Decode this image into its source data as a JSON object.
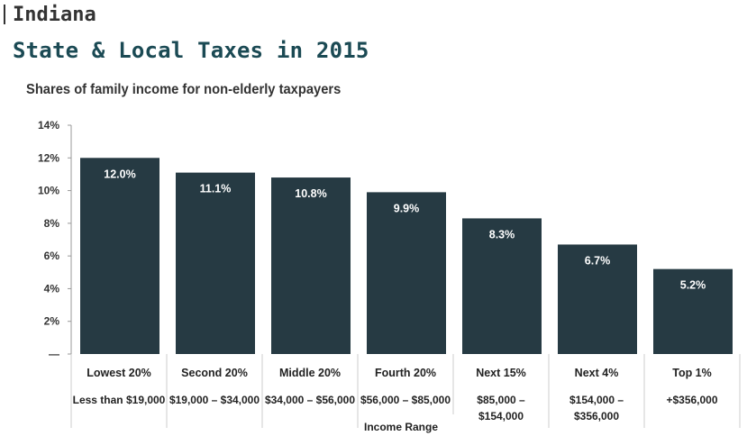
{
  "header": {
    "state": "Indiana",
    "title": "State & Local Taxes in 2015",
    "subtitle": "Shares of family income for non-elderly taxpayers"
  },
  "colors": {
    "bar": "#263a43",
    "title": "#1b4a54",
    "axis": "#999999"
  },
  "chart_data": {
    "type": "bar",
    "title": "State & Local Taxes in 2015",
    "subtitle": "Shares of family income for non-elderly taxpayers",
    "xlabel": "Income Range",
    "ylabel": "",
    "ylim": [
      0,
      14
    ],
    "yticks": [
      "—",
      "2%",
      "4%",
      "6%",
      "8%",
      "10%",
      "12%",
      "14%"
    ],
    "ytick_values": [
      0,
      2,
      4,
      6,
      8,
      10,
      12,
      14
    ],
    "grid": false,
    "categories": [
      "Lowest 20%",
      "Second 20%",
      "Middle 20%",
      "Fourth 20%",
      "Next 15%",
      "Next 4%",
      "Top 1%"
    ],
    "ranges": [
      [
        "Less than $19,000"
      ],
      [
        "$19,000 – $34,000"
      ],
      [
        "$34,000 – $56,000"
      ],
      [
        "$56,000 – $85,000"
      ],
      [
        "$85,000 –",
        "$154,000"
      ],
      [
        "$154,000 –",
        "$356,000"
      ],
      [
        "+$356,000"
      ]
    ],
    "values": [
      12.0,
      11.1,
      10.8,
      9.9,
      8.3,
      6.7,
      5.2
    ],
    "value_labels": [
      "12.0%",
      "11.1%",
      "10.8%",
      "9.9%",
      "8.3%",
      "6.7%",
      "5.2%"
    ]
  }
}
